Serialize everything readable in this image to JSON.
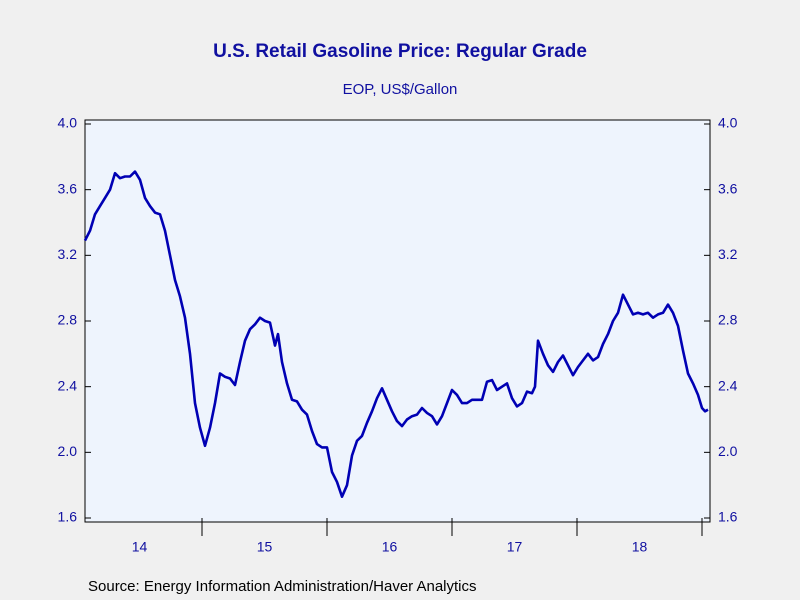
{
  "chart_data": {
    "type": "line",
    "title": "U.S. Retail Gasoline Price: Regular Grade",
    "subtitle": "EOP, US$/Gallon",
    "source": "Source:  Energy Information Administration/Haver Analytics",
    "xlim": [
      2014.064,
      2019.064
    ],
    "xticks": [
      {
        "value": 2014.5,
        "label": "14"
      },
      {
        "value": 2015.5,
        "label": "15"
      },
      {
        "value": 2016.5,
        "label": "16"
      },
      {
        "value": 2017.5,
        "label": "17"
      },
      {
        "value": 2018.5,
        "label": "18"
      }
    ],
    "ylim": [
      1.6,
      4.0
    ],
    "yticks": [
      1.6,
      {
        "value": 2.0,
        "label": "2.0"
      },
      2.4,
      2.8,
      3.2,
      3.6,
      {
        "value": 4.0,
        "label": "4.0"
      }
    ],
    "series": [
      {
        "name": "Regular Grade",
        "color": "#0000b4",
        "x": [
          2014.064,
          2014.104,
          2014.144,
          2014.184,
          2014.224,
          2014.264,
          2014.304,
          2014.344,
          2014.384,
          2014.424,
          2014.464,
          2014.504,
          2014.544,
          2014.584,
          2014.624,
          2014.664,
          2014.704,
          2014.744,
          2014.784,
          2014.824,
          2014.864,
          2014.904,
          2014.944,
          2014.984,
          2015.024,
          2015.064,
          2015.104,
          2015.144,
          2015.184,
          2015.224,
          2015.264,
          2015.304,
          2015.344,
          2015.384,
          2015.424,
          2015.464,
          2015.504,
          2015.544,
          2015.584,
          2015.608,
          2015.64,
          2015.68,
          2015.72,
          2015.76,
          2015.8,
          2015.84,
          2015.88,
          2015.92,
          2015.96,
          2016.0,
          2016.04,
          2016.08,
          2016.12,
          2016.16,
          2016.2,
          2016.24,
          2016.28,
          2016.32,
          2016.36,
          2016.4,
          2016.44,
          2016.48,
          2016.52,
          2016.56,
          2016.6,
          2016.64,
          2016.68,
          2016.72,
          2016.76,
          2016.8,
          2016.84,
          2016.88,
          2016.92,
          2016.96,
          2017.0,
          2017.04,
          2017.08,
          2017.12,
          2017.16,
          2017.2,
          2017.24,
          2017.28,
          2017.32,
          2017.36,
          2017.4,
          2017.44,
          2017.48,
          2017.52,
          2017.56,
          2017.6,
          2017.64,
          2017.664,
          2017.688,
          2017.728,
          2017.768,
          2017.808,
          2017.848,
          2017.888,
          2017.928,
          2017.968,
          2018.008,
          2018.048,
          2018.088,
          2018.128,
          2018.168,
          2018.208,
          2018.248,
          2018.288,
          2018.328,
          2018.368,
          2018.408,
          2018.448,
          2018.488,
          2018.528,
          2018.568,
          2018.608,
          2018.648,
          2018.688,
          2018.728,
          2018.768,
          2018.808,
          2018.848,
          2018.888,
          2018.928,
          2018.968,
          2019.0,
          2019.024,
          2019.048
        ],
        "values": [
          3.29,
          3.35,
          3.45,
          3.5,
          3.55,
          3.6,
          3.7,
          3.67,
          3.68,
          3.68,
          3.71,
          3.66,
          3.55,
          3.5,
          3.46,
          3.45,
          3.35,
          3.2,
          3.05,
          2.95,
          2.82,
          2.6,
          2.3,
          2.15,
          2.04,
          2.15,
          2.3,
          2.48,
          2.46,
          2.45,
          2.41,
          2.55,
          2.68,
          2.75,
          2.78,
          2.82,
          2.8,
          2.79,
          2.65,
          2.72,
          2.55,
          2.42,
          2.32,
          2.31,
          2.26,
          2.23,
          2.13,
          2.05,
          2.03,
          2.03,
          1.88,
          1.82,
          1.73,
          1.8,
          1.98,
          2.07,
          2.1,
          2.18,
          2.25,
          2.33,
          2.39,
          2.32,
          2.25,
          2.19,
          2.16,
          2.2,
          2.22,
          2.23,
          2.27,
          2.24,
          2.22,
          2.17,
          2.22,
          2.3,
          2.38,
          2.35,
          2.3,
          2.3,
          2.32,
          2.32,
          2.32,
          2.43,
          2.44,
          2.38,
          2.4,
          2.42,
          2.33,
          2.28,
          2.3,
          2.37,
          2.36,
          2.4,
          2.68,
          2.6,
          2.53,
          2.49,
          2.55,
          2.59,
          2.53,
          2.47,
          2.52,
          2.56,
          2.6,
          2.56,
          2.58,
          2.66,
          2.72,
          2.8,
          2.85,
          2.96,
          2.9,
          2.84,
          2.85,
          2.84,
          2.85,
          2.82,
          2.84,
          2.85,
          2.9,
          2.85,
          2.77,
          2.62,
          2.48,
          2.42,
          2.35,
          2.27,
          2.25,
          2.26
        ]
      }
    ]
  }
}
